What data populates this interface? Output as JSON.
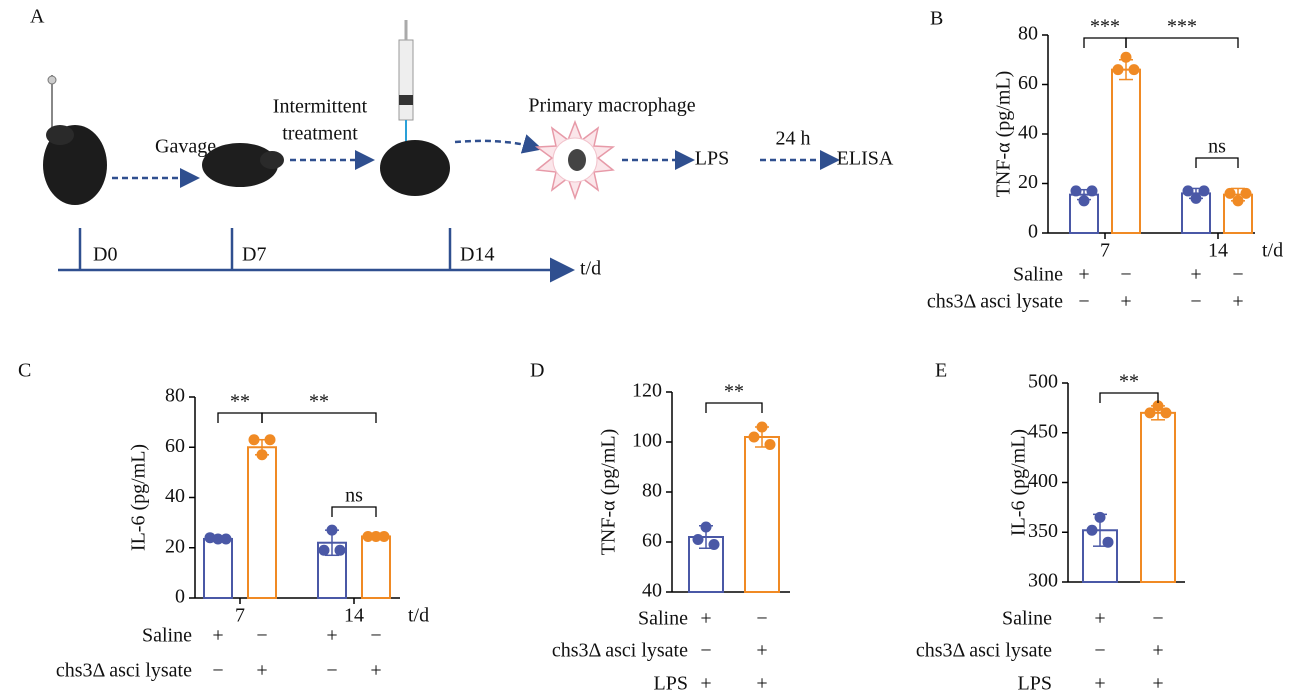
{
  "diagram": {
    "panel": "A",
    "steps": [
      "Gavage",
      "Intermittent",
      "treatment",
      "Primary macrophage",
      "LPS",
      "24 h",
      "ELISA"
    ],
    "timeline": [
      "D0",
      "D7",
      "D14"
    ],
    "axis_label": "t/d"
  },
  "chart_data": [
    {
      "panel": "B",
      "type": "bar",
      "ylabel": "TNF-α (pg/mL)",
      "ylim": [
        0,
        80
      ],
      "yticks": [
        0,
        20,
        40,
        60,
        80
      ],
      "categories": [
        "7",
        "14"
      ],
      "xlabel": "t/d",
      "series": [
        {
          "color": "#4a58a6",
          "values": [
            15.5,
            16
          ],
          "errors": [
            2,
            2
          ],
          "points": [
            [
              17,
              13,
              17
            ],
            [
              17,
              14,
              17
            ]
          ]
        },
        {
          "color": "#f08a24",
          "values": [
            66,
            15.5
          ],
          "errors": [
            4,
            2.5
          ],
          "points": [
            [
              66,
              71,
              66
            ],
            [
              16,
              13,
              16
            ]
          ]
        }
      ],
      "significance": [
        "***",
        "***",
        "ns"
      ],
      "conditions": [
        {
          "label": "Saline",
          "marks": [
            "+",
            "−",
            "+",
            "−"
          ]
        },
        {
          "label": "chs3Δ asci lysate",
          "marks": [
            "−",
            "+",
            "−",
            "+"
          ]
        }
      ]
    },
    {
      "panel": "C",
      "type": "bar",
      "ylabel": "IL-6 (pg/mL)",
      "ylim": [
        0,
        80
      ],
      "yticks": [
        0,
        20,
        40,
        60,
        80
      ],
      "categories": [
        "7",
        "14"
      ],
      "xlabel": "t/d",
      "series": [
        {
          "color": "#4a58a6",
          "values": [
            23.5,
            22
          ],
          "errors": [
            1,
            5
          ],
          "points": [
            [
              24,
              23.5,
              23.5
            ],
            [
              19,
              27,
              19
            ]
          ]
        },
        {
          "color": "#f08a24",
          "values": [
            60,
            24.5
          ],
          "errors": [
            3,
            0.5
          ],
          "points": [
            [
              63,
              57,
              63
            ],
            [
              24.5,
              24.5,
              24.5
            ]
          ]
        }
      ],
      "significance": [
        "**",
        "**",
        "ns"
      ],
      "conditions": [
        {
          "label": "Saline",
          "marks": [
            "+",
            "−",
            "+",
            "−"
          ]
        },
        {
          "label": "chs3Δ asci lysate",
          "marks": [
            "−",
            "+",
            "−",
            "+"
          ]
        }
      ]
    },
    {
      "panel": "D",
      "type": "bar",
      "ylabel": "TNF-α (pg/mL)",
      "ylim": [
        40,
        120
      ],
      "yticks": [
        40,
        60,
        80,
        100,
        120
      ],
      "series": [
        {
          "color": "#4a58a6",
          "values": [
            62
          ],
          "errors": [
            4.5
          ],
          "points": [
            [
              61,
              66,
              59
            ]
          ]
        },
        {
          "color": "#f08a24",
          "values": [
            102
          ],
          "errors": [
            4
          ],
          "points": [
            [
              102,
              106,
              99
            ]
          ]
        }
      ],
      "significance": [
        "**"
      ],
      "conditions": [
        {
          "label": "Saline",
          "marks": [
            "+",
            "−"
          ]
        },
        {
          "label": "chs3Δ asci lysate",
          "marks": [
            "−",
            "+"
          ]
        },
        {
          "label": "LPS",
          "marks": [
            "+",
            "+"
          ]
        }
      ]
    },
    {
      "panel": "E",
      "type": "bar",
      "ylabel": "IL-6 (pg/mL)",
      "ylim": [
        300,
        500
      ],
      "yticks": [
        300,
        350,
        400,
        450,
        500
      ],
      "series": [
        {
          "color": "#4a58a6",
          "values": [
            352
          ],
          "errors": [
            16
          ],
          "points": [
            [
              352,
              365,
              340
            ]
          ]
        },
        {
          "color": "#f08a24",
          "values": [
            470
          ],
          "errors": [
            7
          ],
          "points": [
            [
              470,
              477,
              470
            ]
          ]
        }
      ],
      "significance": [
        "**"
      ],
      "conditions": [
        {
          "label": "Saline",
          "marks": [
            "+",
            "−"
          ]
        },
        {
          "label": "chs3Δ asci lysate",
          "marks": [
            "−",
            "+"
          ]
        },
        {
          "label": "LPS",
          "marks": [
            "+",
            "+"
          ]
        }
      ]
    }
  ]
}
